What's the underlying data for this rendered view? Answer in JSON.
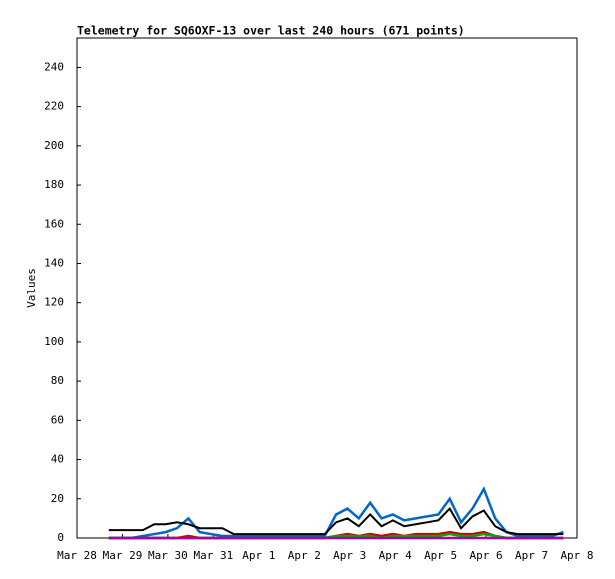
{
  "chart_data": {
    "type": "line",
    "title": "Telemetry for SQ6OXF-13 over last 240 hours (671 points)",
    "y_label": "Values",
    "x": [
      0.7,
      0.95,
      1.2,
      1.45,
      1.7,
      1.95,
      2.2,
      2.45,
      2.7,
      2.95,
      3.2,
      3.45,
      3.7,
      3.95,
      4.2,
      4.45,
      4.7,
      4.95,
      5.2,
      5.45,
      5.7,
      5.95,
      6.2,
      6.45,
      6.7,
      6.95,
      7.2,
      7.45,
      7.7,
      7.95,
      8.2,
      8.45,
      8.7,
      8.95,
      9.2,
      9.45,
      9.7,
      9.95,
      10.2,
      10.45,
      10.7
    ],
    "series": [
      {
        "color": "#0066cc",
        "values": [
          0,
          0,
          0,
          1,
          2,
          3,
          5,
          10,
          3,
          2,
          1,
          1,
          1,
          1,
          1,
          1,
          1,
          1,
          1,
          1,
          12,
          15,
          10,
          18,
          10,
          12,
          9,
          10,
          11,
          12,
          20,
          8,
          15,
          25,
          10,
          3,
          1,
          1,
          1,
          1,
          3
        ]
      },
      {
        "color": "#cc0000",
        "values": [
          0,
          0,
          0,
          0,
          0,
          0,
          0,
          1,
          0,
          0,
          0,
          0,
          0,
          0,
          0,
          0,
          0,
          0,
          0,
          0,
          1,
          2,
          1,
          2,
          1,
          2,
          1,
          2,
          2,
          2,
          3,
          2,
          2,
          3,
          1,
          0,
          0,
          0,
          0,
          0,
          0
        ]
      },
      {
        "color": "#00aa00",
        "values": [
          0,
          0,
          0,
          0,
          0,
          0,
          0,
          0,
          0,
          0,
          0,
          0,
          0,
          0,
          0,
          0,
          0,
          0,
          0,
          0,
          1,
          1,
          1,
          1,
          0,
          1,
          1,
          1,
          1,
          1,
          2,
          1,
          1,
          2,
          1,
          0,
          0,
          0,
          0,
          0,
          0
        ]
      },
      {
        "color": "#aa00aa",
        "values": [
          0,
          0,
          0,
          0,
          0,
          0,
          0,
          0,
          0,
          0,
          0,
          0,
          0,
          0,
          0,
          0,
          0,
          0,
          0,
          0,
          0,
          0,
          0,
          0,
          0,
          0,
          0,
          0,
          0,
          0,
          0,
          0,
          0,
          0,
          0,
          0,
          0,
          0,
          0,
          0,
          0
        ]
      },
      {
        "color": "#000000",
        "values": [
          4,
          4,
          4,
          4,
          7,
          7,
          8,
          7,
          5,
          5,
          5,
          2,
          2,
          2,
          2,
          2,
          2,
          2,
          2,
          2,
          8,
          10,
          6,
          12,
          6,
          9,
          6,
          7,
          8,
          9,
          15,
          5,
          11,
          14,
          6,
          3,
          2,
          2,
          2,
          2,
          2
        ]
      }
    ],
    "xlim": [
      0,
      11
    ],
    "xticks": [
      {
        "value": 0,
        "label": "Mar 28"
      },
      {
        "value": 1,
        "label": "Mar 29"
      },
      {
        "value": 2,
        "label": "Mar 30"
      },
      {
        "value": 3,
        "label": "Mar 31"
      },
      {
        "value": 4,
        "label": "Apr 1"
      },
      {
        "value": 5,
        "label": "Apr 2"
      },
      {
        "value": 6,
        "label": "Apr 3"
      },
      {
        "value": 7,
        "label": "Apr 4"
      },
      {
        "value": 8,
        "label": "Apr 5"
      },
      {
        "value": 9,
        "label": "Apr 6"
      },
      {
        "value": 10,
        "label": "Apr 7"
      },
      {
        "value": 11,
        "label": "Apr 8"
      }
    ],
    "ylim": [
      0,
      255
    ],
    "yticks": [
      0,
      20,
      40,
      60,
      80,
      100,
      120,
      140,
      160,
      180,
      200,
      220,
      240
    ]
  }
}
